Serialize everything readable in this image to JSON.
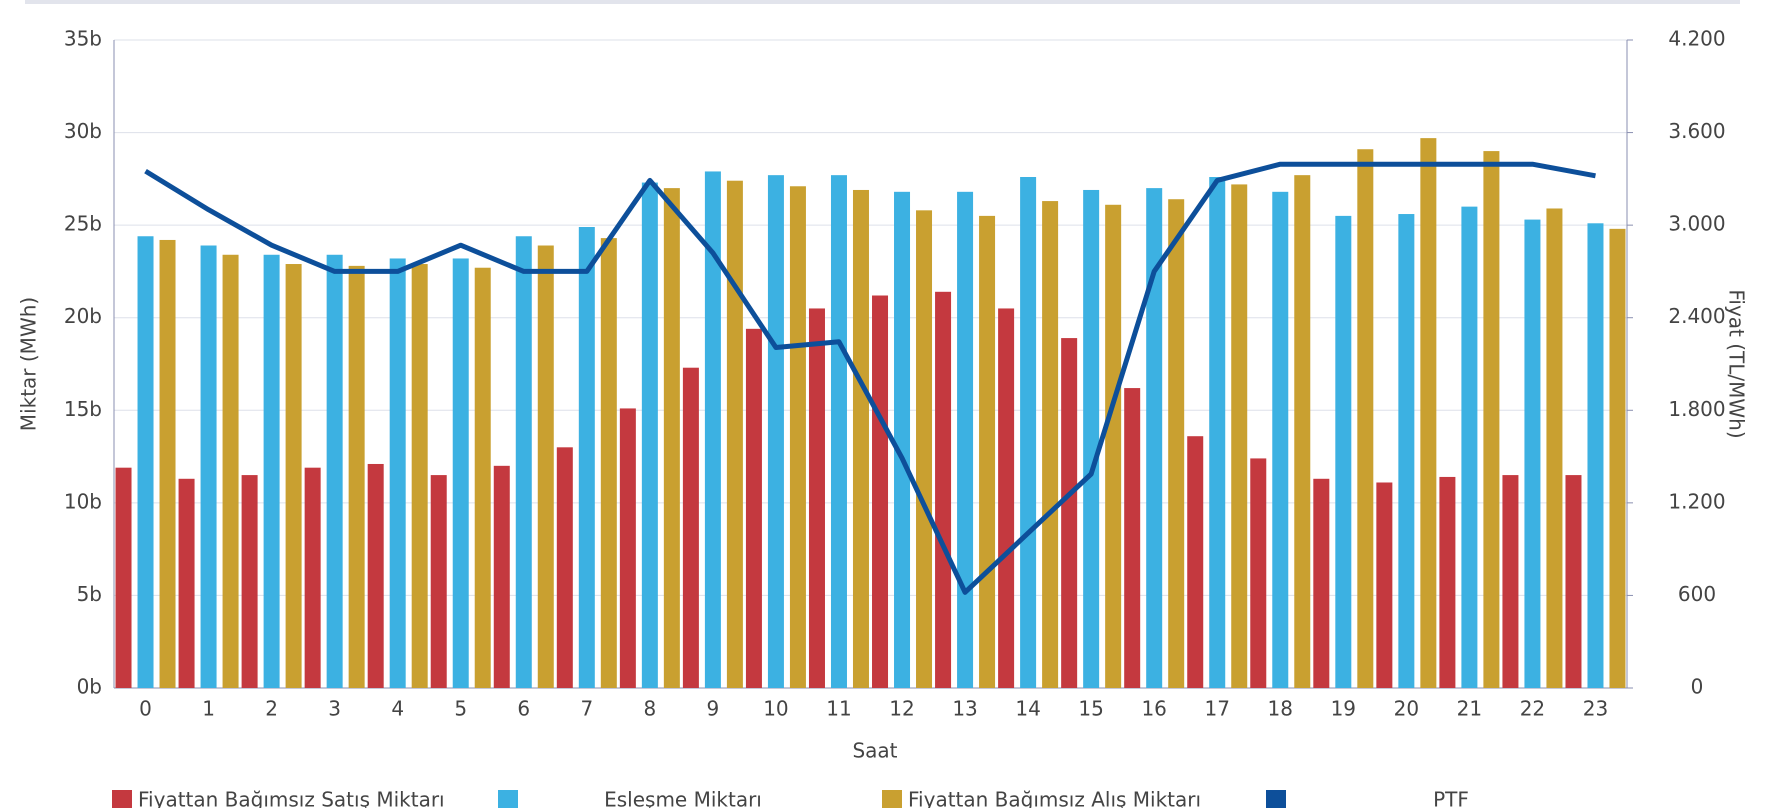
{
  "chart_data": {
    "type": "bar",
    "x_label": "Saat",
    "y_label": "Miktar (MWh)",
    "y2_label": "Fiyat (TL/MWh)",
    "categories": [
      "0",
      "1",
      "2",
      "3",
      "4",
      "5",
      "6",
      "7",
      "8",
      "9",
      "10",
      "11",
      "12",
      "13",
      "14",
      "15",
      "16",
      "17",
      "18",
      "19",
      "20",
      "21",
      "22",
      "23"
    ],
    "series": [
      {
        "name": "Fiyattan Bağımsız Satış Miktarı",
        "color": "#c4393f",
        "values": [
          11.9,
          11.3,
          11.5,
          11.9,
          12.1,
          11.5,
          12.0,
          13.0,
          15.1,
          17.3,
          19.4,
          20.5,
          21.2,
          21.4,
          20.5,
          18.9,
          16.2,
          13.6,
          12.4,
          11.3,
          11.1,
          11.4,
          11.5,
          11.5
        ]
      },
      {
        "name": "Esļes̨me Miktarı",
        "color": "#3cb1e2",
        "values": [
          24.4,
          23.9,
          23.4,
          23.4,
          23.2,
          23.2,
          24.4,
          24.9,
          27.3,
          27.9,
          27.7,
          27.7,
          26.8,
          26.8,
          27.6,
          26.9,
          27.0,
          27.6,
          26.8,
          25.5,
          25.6,
          26.0,
          25.3,
          25.1
        ]
      },
      {
        "name": "Fiyattan Bağımsız Alış Miktarı",
        "color": "#c9a030",
        "values": [
          24.2,
          23.4,
          22.9,
          22.8,
          22.9,
          22.7,
          23.9,
          24.3,
          27.0,
          27.4,
          27.1,
          26.9,
          25.8,
          25.5,
          26.3,
          26.1,
          26.4,
          27.2,
          27.7,
          29.1,
          29.7,
          29.0,
          25.9,
          24.8
        ]
      },
      {
        "name": "PTF",
        "color": "#0d4f9a",
        "type": "line",
        "axis": "y2",
        "values": [
          3350,
          3100,
          2870,
          2700,
          2700,
          2870,
          2700,
          2700,
          3290,
          2820,
          2207,
          2244,
          1490,
          620,
          1004,
          1387,
          2700,
          3290,
          3395,
          3395,
          3395,
          3395,
          3395,
          3320
        ]
      }
    ],
    "ylim": [
      0,
      35
    ],
    "yticks": [
      {
        "value": 0,
        "label": "0b"
      },
      {
        "value": 5,
        "label": "5b"
      },
      {
        "value": 10,
        "label": "10b"
      },
      {
        "value": 15,
        "label": "15b"
      },
      {
        "value": 20,
        "label": "20b"
      },
      {
        "value": 25,
        "label": "25b"
      },
      {
        "value": 30,
        "label": "30b"
      },
      {
        "value": 35,
        "label": "35b"
      }
    ],
    "y2lim": [
      0,
      4200
    ],
    "y2ticks": [
      0,
      600,
      {
        "value": 1200,
        "label": "1.200"
      },
      {
        "value": 1800,
        "label": "1.800"
      },
      {
        "value": 2400,
        "label": "2.400"
      },
      {
        "value": 3000,
        "label": "3.000"
      },
      {
        "value": 3600,
        "label": "3.600"
      },
      {
        "value": 4200,
        "label": "4.200"
      }
    ],
    "grid": true
  }
}
